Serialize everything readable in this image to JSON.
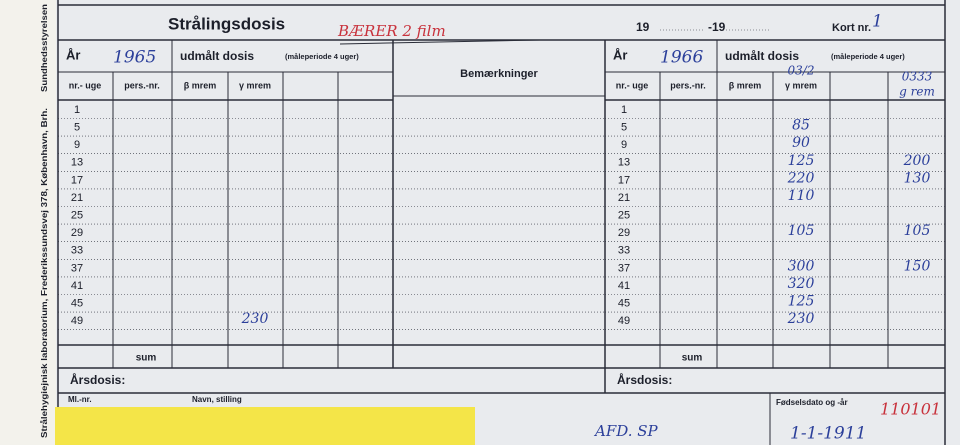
{
  "side": {
    "institution": "Strålehygiejnisk laboratorium, Frederikssundsvej 378, København, Brh.",
    "authority": "Sundhedsstyrelsen"
  },
  "header": {
    "title": "Strålingsdosis",
    "note": "BÆRER 2 film",
    "year_from": "19",
    "year_to": "-19",
    "card_label": "Kort nr.",
    "card_no": "1"
  },
  "left": {
    "year_label": "År",
    "year": "1965",
    "dose_label": "udmålt dosis",
    "period": "(måleperiode 4 uger)",
    "columns": [
      "nr.- uge",
      "pers.-nr.",
      "β mrem",
      "γ mrem"
    ],
    "weeks": [
      1,
      5,
      9,
      13,
      17,
      21,
      25,
      29,
      33,
      37,
      41,
      45,
      49
    ],
    "gamma": [
      null,
      null,
      null,
      null,
      null,
      null,
      null,
      null,
      null,
      null,
      null,
      null,
      230
    ],
    "sum": "sum",
    "annual": "Årsdosis:"
  },
  "remarks": "Bemærkninger",
  "right": {
    "year_label": "År",
    "year": "1966",
    "dose_label": "udmålt dosis",
    "period": "(måleperiode 4 uger)",
    "columns": [
      "nr.- uge",
      "pers.-nr.",
      "β mrem",
      "γ mrem"
    ],
    "gamma_note": "03/2",
    "extra_header": [
      "0333",
      "g rem"
    ],
    "weeks": [
      1,
      5,
      9,
      13,
      17,
      21,
      25,
      29,
      33,
      37,
      41,
      45,
      49
    ],
    "gamma": [
      null,
      85,
      90,
      125,
      220,
      110,
      null,
      105,
      null,
      300,
      320,
      125,
      230
    ],
    "extra": [
      null,
      null,
      null,
      200,
      130,
      null,
      null,
      105,
      null,
      150,
      null,
      null,
      null
    ],
    "sum": "sum",
    "annual": "Årsdosis:"
  },
  "footer": {
    "id_label": "Ml.-nr.",
    "name_label": "Navn, stilling",
    "birth_label": "Fødselsdato og -år",
    "birth_code": "110101",
    "birth_date": "1-1-1911",
    "dept": "AFD. SP"
  }
}
